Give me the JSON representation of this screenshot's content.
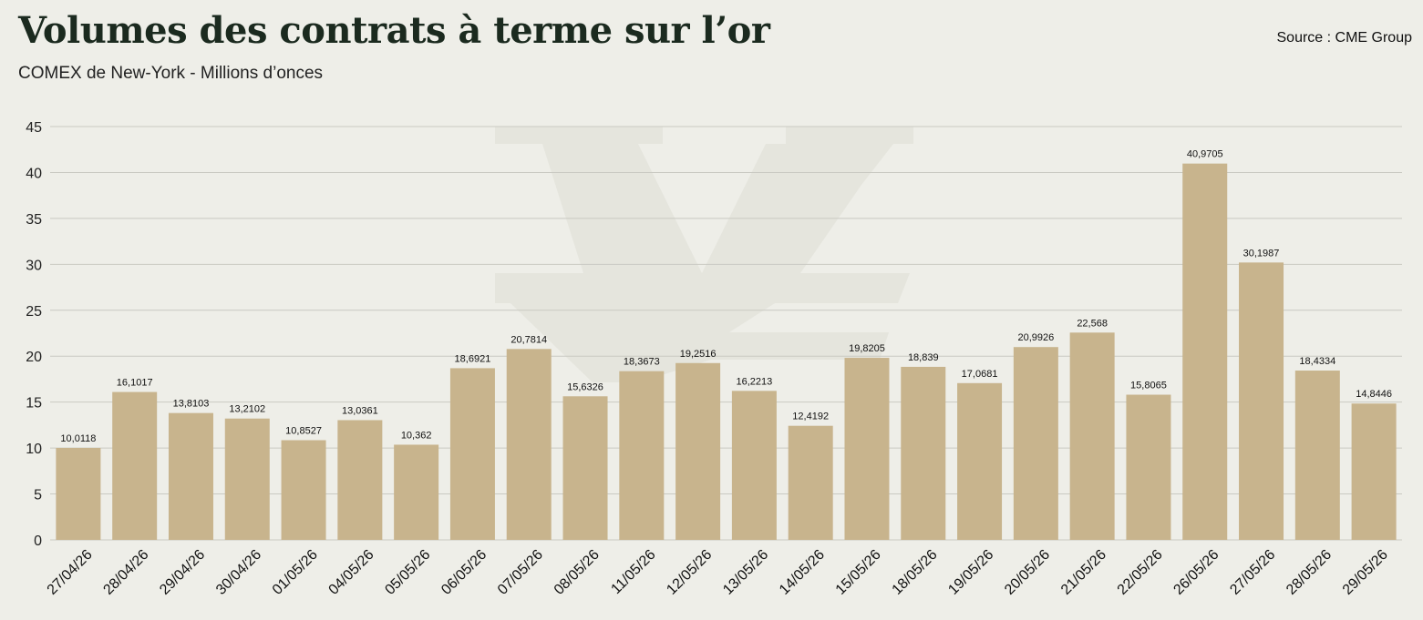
{
  "header": {
    "title": "Volumes des contrats à terme sur l’or",
    "subtitle": "COMEX de New-York - Millions d’onces",
    "source": "Source : CME Group"
  },
  "colors": {
    "background": "#eeeee8",
    "bar": "#c8b48d",
    "gridline": "#c9c9c2",
    "watermark": "#e3e3dc"
  },
  "chart_data": {
    "type": "bar",
    "categories": [
      "27/04/26",
      "28/04/26",
      "29/04/26",
      "30/04/26",
      "01/05/26",
      "04/05/26",
      "05/05/26",
      "06/05/26",
      "07/05/26",
      "08/05/26",
      "11/05/26",
      "12/05/26",
      "13/05/26",
      "14/05/26",
      "15/05/26",
      "18/05/26",
      "19/05/26",
      "20/05/26",
      "21/05/26",
      "22/05/26",
      "26/05/26",
      "27/05/26",
      "28/05/26",
      "29/05/26"
    ],
    "values": [
      10.0118,
      16.1017,
      13.8103,
      13.2102,
      10.8527,
      13.0361,
      10.362,
      18.6921,
      20.7814,
      15.6326,
      18.3673,
      19.2516,
      16.2213,
      12.4192,
      19.8205,
      18.839,
      17.0681,
      20.9926,
      22.568,
      15.8065,
      40.9705,
      30.1987,
      18.4334,
      14.8446
    ],
    "data_labels": [
      "10,0118",
      "16,1017",
      "13,8103",
      "13,2102",
      "10,8527",
      "13,0361",
      "10,362",
      "18,6921",
      "20,7814",
      "15,6326",
      "18,3673",
      "19,2516",
      "16,2213",
      "12,4192",
      "19,8205",
      "18,839",
      "17,0681",
      "20,9926",
      "22,568",
      "15,8065",
      "40,9705",
      "30,1987",
      "18,4334",
      "14,8446"
    ],
    "yticks": [
      0,
      5,
      10,
      15,
      20,
      25,
      30,
      35,
      40,
      45
    ],
    "ylim": [
      0,
      45
    ],
    "grid": true,
    "legend": "none"
  }
}
